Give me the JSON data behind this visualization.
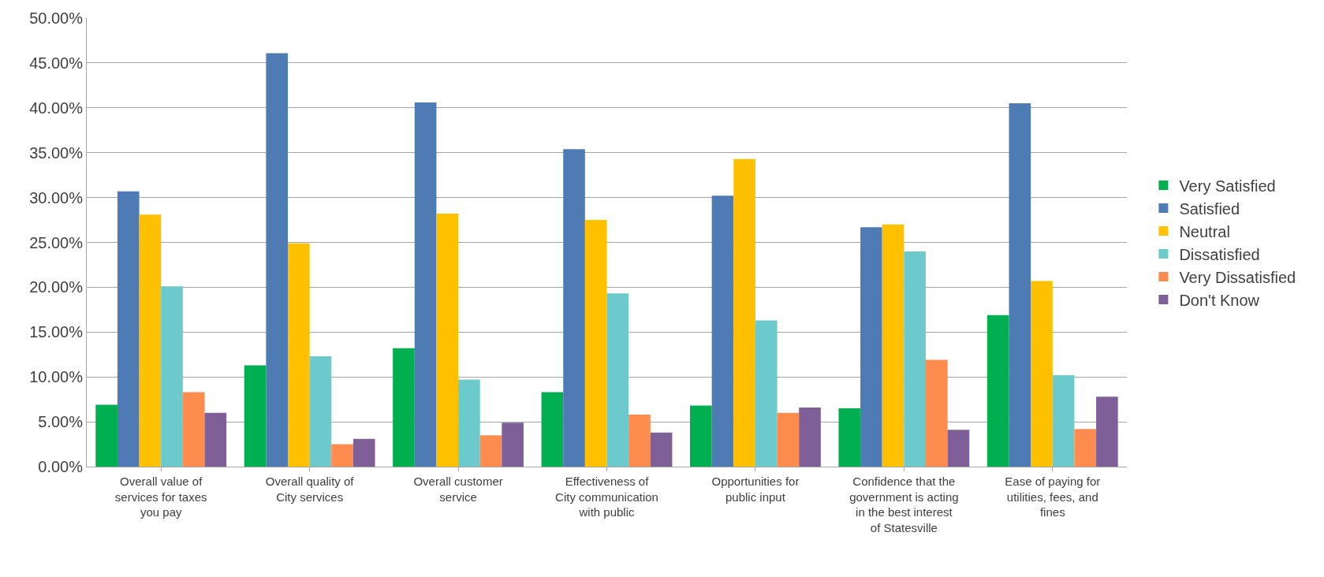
{
  "chart_data": {
    "type": "bar",
    "categories": [
      "Overall value of services for taxes you pay",
      "Overall quality of City services",
      "Overall customer service",
      "Effectiveness of City communication with public",
      "Opportunities for public input",
      "Confidence that the government is acting in the best interest of Statesville",
      "Ease of paying for utilities, fees, and fines"
    ],
    "series": [
      {
        "name": "Very Satisfied",
        "color": "#00b050",
        "values": [
          6.9,
          11.3,
          13.2,
          8.3,
          6.8,
          6.5,
          16.9
        ]
      },
      {
        "name": "Satisfied",
        "color": "#4f7bb5",
        "values": [
          30.7,
          46.1,
          40.6,
          35.4,
          30.2,
          26.7,
          40.5
        ]
      },
      {
        "name": "Neutral",
        "color": "#ffc000",
        "values": [
          28.1,
          24.9,
          28.2,
          27.5,
          34.3,
          27.0,
          20.7
        ]
      },
      {
        "name": "Dissatisfied",
        "color": "#6ccacd",
        "values": [
          20.1,
          12.3,
          9.7,
          19.3,
          16.3,
          24.0,
          10.2
        ]
      },
      {
        "name": "Very Dissatisfied",
        "color": "#ff8c4f",
        "values": [
          8.3,
          2.5,
          3.5,
          5.8,
          6.0,
          11.9,
          4.2
        ]
      },
      {
        "name": "Don't Know",
        "color": "#7f5f98",
        "values": [
          6.0,
          3.1,
          4.9,
          3.8,
          6.6,
          4.1,
          7.8
        ]
      }
    ],
    "ylim": [
      0,
      50
    ],
    "yticks": [
      {
        "value": 0,
        "label": "0.00%"
      },
      {
        "value": 5,
        "label": "5.00%"
      },
      {
        "value": 10,
        "label": "10.00%"
      },
      {
        "value": 15,
        "label": "15.00%"
      },
      {
        "value": 20,
        "label": "20.00%"
      },
      {
        "value": 25,
        "label": "25.00%"
      },
      {
        "value": 30,
        "label": "30.00%"
      },
      {
        "value": 35,
        "label": "35.00%"
      },
      {
        "value": 40,
        "label": "40.00%"
      },
      {
        "value": 45,
        "label": "45.00%"
      },
      {
        "value": 50,
        "label": "50.00%"
      }
    ],
    "grid": "y",
    "legend": "right"
  }
}
